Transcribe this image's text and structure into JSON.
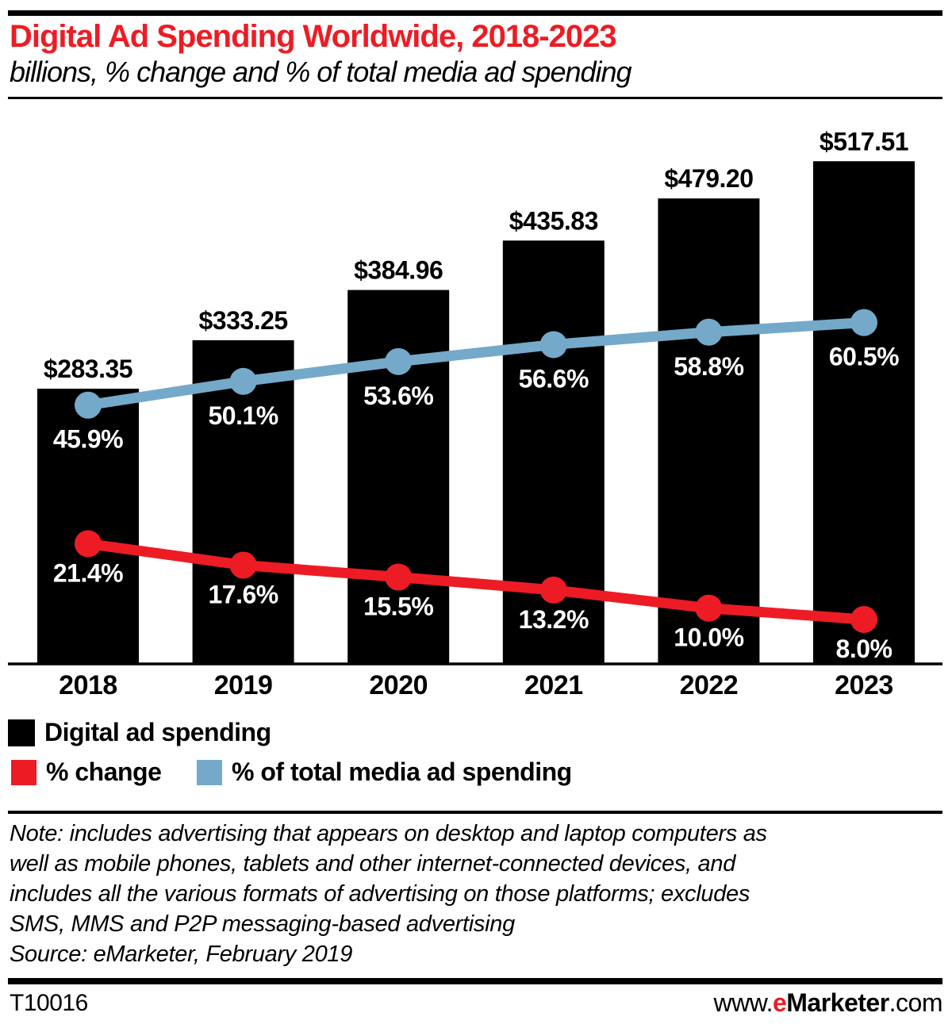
{
  "header": {
    "title": "Digital Ad Spending Worldwide, 2018-2023",
    "subtitle": "billions, % change and % of total media ad spending"
  },
  "colors": {
    "accent_red": "#ed1c24",
    "line_blue": "#74a9c9",
    "bar_black": "#000000",
    "label_white": "#ffffff"
  },
  "chart_data": {
    "type": "combo",
    "categories": [
      "2018",
      "2019",
      "2020",
      "2021",
      "2022",
      "2023"
    ],
    "series": [
      {
        "name": "Digital ad spending",
        "type": "bar",
        "unit": "US$ billions",
        "values": [
          283.35,
          333.25,
          384.96,
          435.83,
          479.2,
          517.51
        ],
        "labels": [
          "$283.35",
          "$333.25",
          "$384.96",
          "$435.83",
          "$479.20",
          "$517.51"
        ],
        "color": "#000000"
      },
      {
        "name": "% change",
        "type": "line",
        "unit": "%",
        "values": [
          21.4,
          17.6,
          15.5,
          13.2,
          10.0,
          8.0
        ],
        "labels": [
          "21.4%",
          "17.6%",
          "15.5%",
          "13.2%",
          "10.0%",
          "8.0%"
        ],
        "color": "#ed1c24"
      },
      {
        "name": "% of total media ad spending",
        "type": "line",
        "unit": "%",
        "values": [
          45.9,
          50.1,
          53.6,
          56.6,
          58.8,
          60.5
        ],
        "labels": [
          "45.9%",
          "50.1%",
          "53.6%",
          "56.6%",
          "58.8%",
          "60.5%"
        ],
        "color": "#74a9c9"
      }
    ],
    "title": "Digital Ad Spending Worldwide, 2018-2023",
    "xlabel": "",
    "ylabel": "",
    "grid": false,
    "legend_position": "bottom"
  },
  "legend": {
    "items": [
      {
        "label": "Digital ad spending",
        "swatch": "black-square"
      },
      {
        "label": "% change",
        "swatch": "red-square"
      },
      {
        "label": "% of total media ad spending",
        "swatch": "blue-square"
      }
    ]
  },
  "note": {
    "lines": [
      "Note: includes advertising that appears on desktop and laptop computers as",
      "well as mobile phones, tablets and other internet-connected devices, and",
      "includes all the various formats of advertising on those platforms; excludes",
      "SMS, MMS and P2P messaging-based advertising"
    ],
    "source": "Source: eMarketer, February 2019"
  },
  "footer": {
    "id": "T10016",
    "url": {
      "www": "www.",
      "e": "e",
      "brand": "Marketer",
      "com": ".com"
    }
  }
}
